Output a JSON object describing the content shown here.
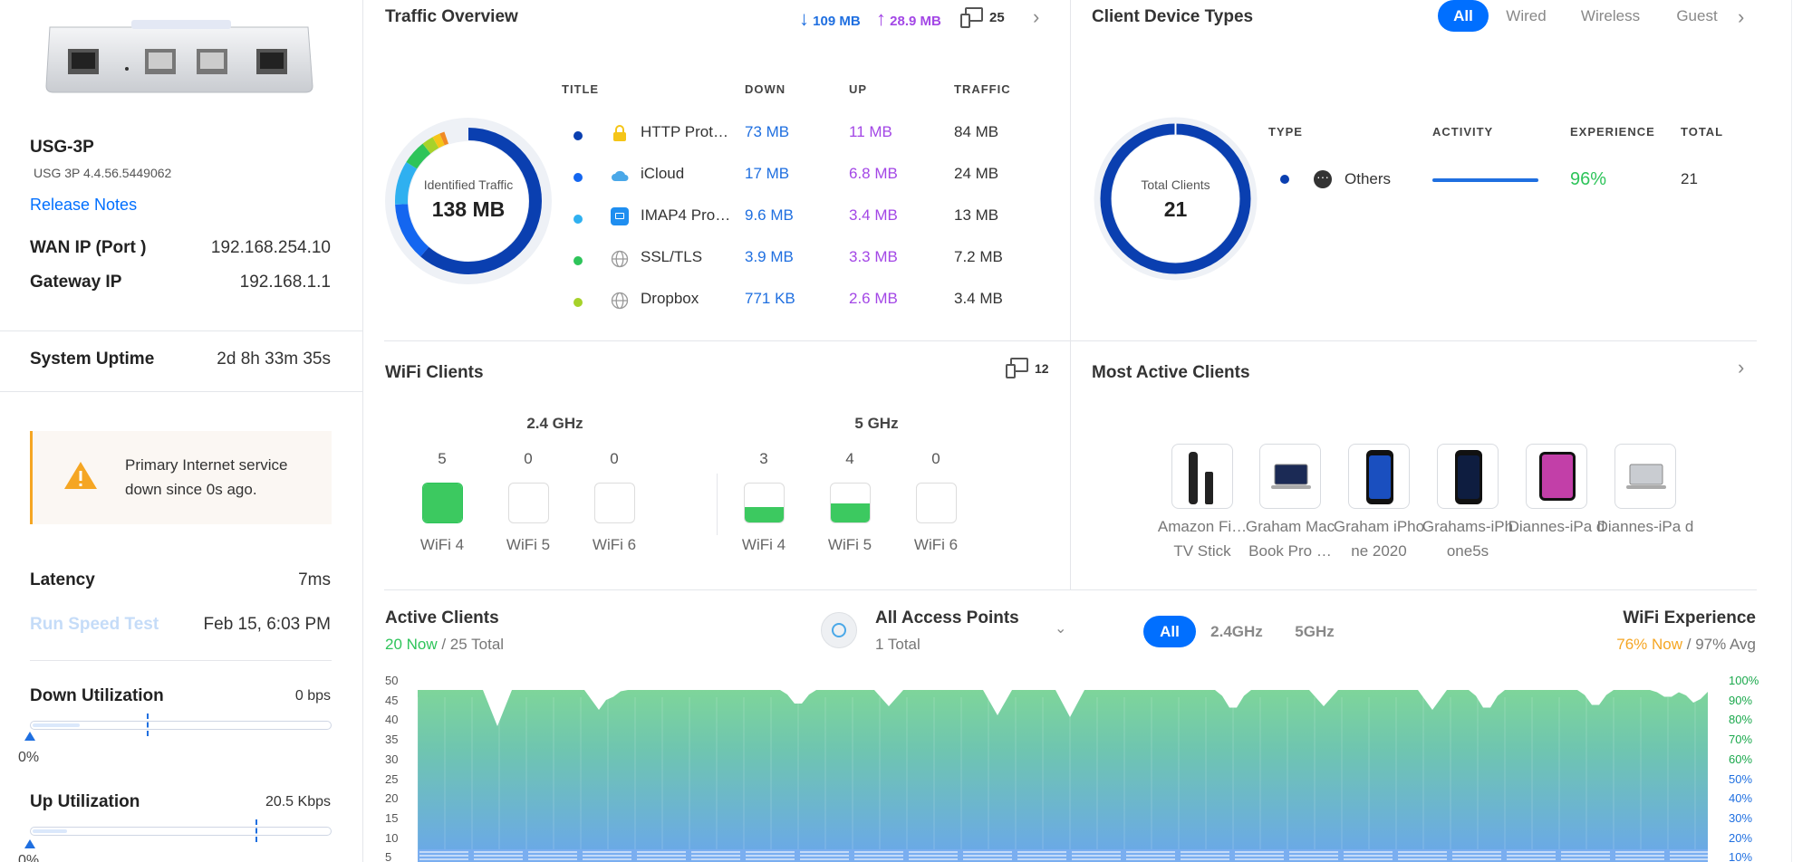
{
  "device": {
    "name": "USG-3P",
    "version": "USG 3P 4.4.56.5449062",
    "release_notes": "Release Notes",
    "wan_ip_label": "WAN IP (Port )",
    "wan_ip": "192.168.254.10",
    "gateway_label": "Gateway IP",
    "gateway": "192.168.1.1",
    "uptime_label": "System Uptime",
    "uptime": "2d 8h 33m 35s"
  },
  "alert": {
    "message": "Primary Internet service down since 0s ago."
  },
  "latency": {
    "label": "Latency",
    "value": "7ms"
  },
  "speedtest": {
    "label": "Run Speed Test",
    "time": "Feb 15, 6:03 PM"
  },
  "down_util": {
    "label": "Down Utilization",
    "value": "0 bps",
    "percent": "0%"
  },
  "up_util": {
    "label": "Up Utilization",
    "value": "20.5 Kbps",
    "percent": "0%"
  },
  "traffic": {
    "title": "Traffic Overview",
    "down": "109 MB",
    "up": "28.9 MB",
    "clients": "25",
    "donut_label": "Identified Traffic",
    "donut_value": "138 MB",
    "headers": {
      "title": "TITLE",
      "down": "DOWN",
      "up": "UP",
      "traffic": "TRAFFIC"
    },
    "rows": [
      {
        "name": "HTTP Prot…",
        "down": "73 MB",
        "up": "11 MB",
        "total": "84 MB",
        "color": "#0a3fb0",
        "icon": "lock-icon"
      },
      {
        "name": "iCloud",
        "down": "17 MB",
        "up": "6.8 MB",
        "total": "24 MB",
        "color": "#1466f0",
        "icon": "cloud-icon"
      },
      {
        "name": "IMAP4 Pro…",
        "down": "9.6 MB",
        "up": "3.4 MB",
        "total": "13 MB",
        "color": "#2fb0f0",
        "icon": "mail-icon"
      },
      {
        "name": "SSL/TLS",
        "down": "3.9 MB",
        "up": "3.3 MB",
        "total": "7.2 MB",
        "color": "#2ec45a",
        "icon": "globe-icon"
      },
      {
        "name": "Dropbox",
        "down": "771 KB",
        "up": "2.6 MB",
        "total": "3.4 MB",
        "color": "#a6d22a",
        "icon": "globe-icon"
      }
    ]
  },
  "client_types": {
    "title": "Client Device Types",
    "tabs": [
      "All",
      "Wired",
      "Wireless",
      "Guest"
    ],
    "donut_label": "Total Clients",
    "donut_value": "21",
    "headers": {
      "type": "TYPE",
      "activity": "ACTIVITY",
      "experience": "EXPERIENCE",
      "total": "TOTAL"
    },
    "rows": [
      {
        "type": "Others",
        "activity_fraction": 1.0,
        "experience": "96%",
        "total": "21"
      }
    ]
  },
  "wifi_clients": {
    "title": "WiFi Clients",
    "count": "12",
    "bands": [
      {
        "name": "2.4 GHz",
        "items": [
          {
            "count": "5",
            "label": "WiFi 4",
            "fill": 1.0
          },
          {
            "count": "0",
            "label": "WiFi 5",
            "fill": 0
          },
          {
            "count": "0",
            "label": "WiFi 6",
            "fill": 0
          }
        ]
      },
      {
        "name": "5 GHz",
        "items": [
          {
            "count": "3",
            "label": "WiFi 4",
            "fill": 0.4
          },
          {
            "count": "4",
            "label": "WiFi 5",
            "fill": 0.5
          },
          {
            "count": "0",
            "label": "WiFi 6",
            "fill": 0
          }
        ]
      }
    ]
  },
  "most_active": {
    "title": "Most Active Clients",
    "clients": [
      {
        "name": "Amazon Fi… TV Stick",
        "icon": "firetv-stick-icon"
      },
      {
        "name": "Graham Mac Book Pro …",
        "icon": "laptop-icon"
      },
      {
        "name": "Graham iPho ne 2020",
        "icon": "phone-icon"
      },
      {
        "name": "Grahams-iPh one5s",
        "icon": "phone-icon"
      },
      {
        "name": "Diannes-iPa d",
        "icon": "tablet-icon"
      },
      {
        "name": "Diannes-iPa d",
        "icon": "laptop-icon"
      }
    ]
  },
  "active_clients": {
    "title": "Active Clients",
    "now": "20 Now",
    "total": " / 25 Total",
    "ap_title": "All Access Points",
    "ap_sub": "1 Total",
    "bands": [
      "All",
      "2.4GHz",
      "5GHz"
    ],
    "wifi_exp_title": "WiFi Experience",
    "wifi_exp_now": "76% Now",
    "wifi_exp_avg": " / 97% Avg",
    "y_ticks": [
      "50",
      "45",
      "40",
      "35",
      "30",
      "25",
      "20",
      "15",
      "10",
      "5"
    ],
    "y2_ticks": [
      "100%",
      "90%",
      "80%",
      "70%",
      "60%",
      "50%",
      "40%",
      "30%",
      "20%",
      "10%"
    ]
  },
  "colors": {
    "accent": "#006fff",
    "green": "#2ec45a",
    "purple": "#a347e6",
    "warning": "#f5a623"
  }
}
